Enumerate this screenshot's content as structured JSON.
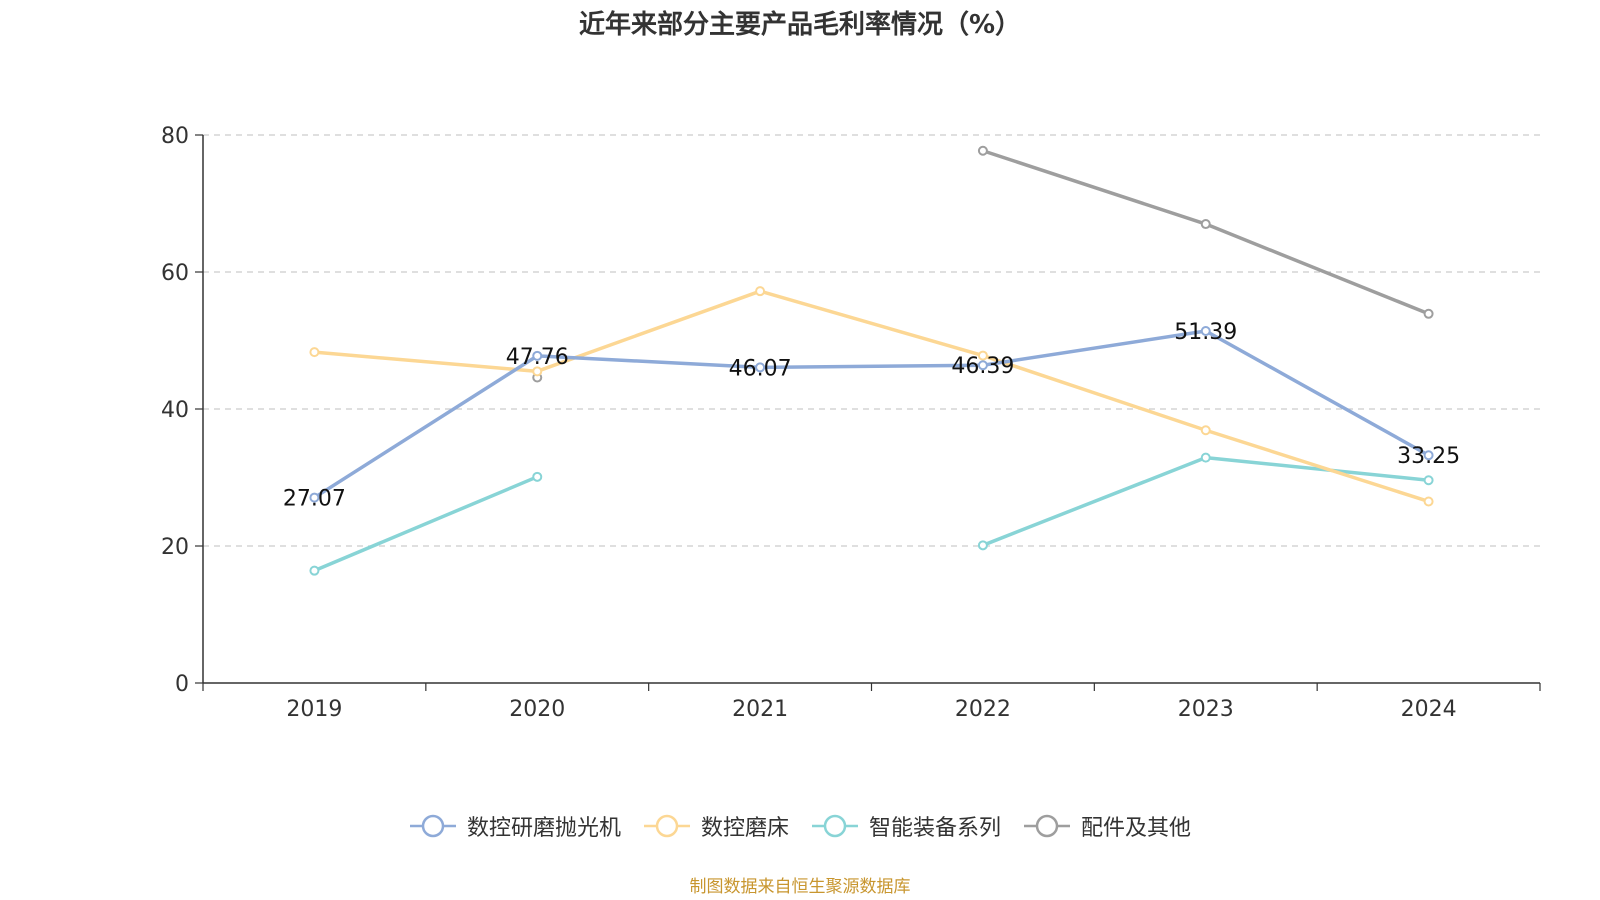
{
  "chart_data": {
    "type": "line",
    "title": "近年来部分主要产品毛利率情况（%）",
    "xlabel": "",
    "ylabel": "",
    "categories": [
      "2019",
      "2020",
      "2021",
      "2022",
      "2023",
      "2024"
    ],
    "ylim": [
      0,
      80
    ],
    "yticks": [
      0,
      20,
      40,
      60,
      80
    ],
    "grid": true,
    "legend_position": "bottom",
    "series": [
      {
        "name": "数控研磨抛光机",
        "color": "#8eaad8",
        "values": [
          27.07,
          47.76,
          46.07,
          46.39,
          51.39,
          33.25
        ],
        "labeled": true
      },
      {
        "name": "数控磨床",
        "color": "#fcd794",
        "values": [
          48.3,
          45.5,
          57.2,
          47.8,
          36.9,
          26.5
        ],
        "labeled": false
      },
      {
        "name": "智能装备系列",
        "color": "#88d4d6",
        "values": [
          16.4,
          30.1,
          null,
          20.1,
          32.9,
          29.6
        ],
        "labeled": false
      },
      {
        "name": "配件及其他",
        "color": "#9e9e9e",
        "values": [
          null,
          44.6,
          null,
          77.7,
          67.0,
          53.9
        ],
        "labeled": false
      }
    ]
  },
  "source_note": "制图数据来自恒生聚源数据库"
}
